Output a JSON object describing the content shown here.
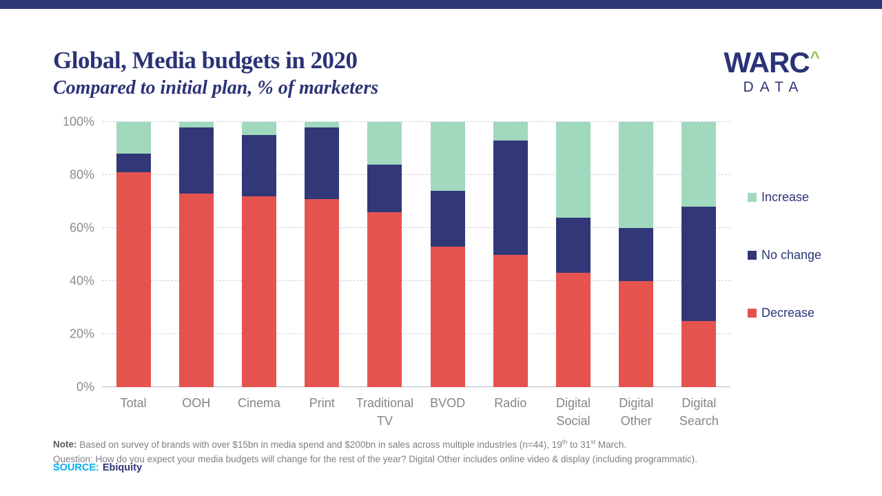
{
  "page": {
    "top_bar_color": "#2F3676",
    "background": "#FFFFFF"
  },
  "header": {
    "title": "Global, Media budgets in 2020",
    "subtitle": "Compared to initial plan, % of marketers",
    "logo": {
      "brand": "WARC",
      "caret": "^",
      "sub": "DATA",
      "brand_color": "#2B3377",
      "caret_color": "#8CC63F"
    }
  },
  "chart_data": {
    "type": "bar",
    "stacked": true,
    "unit": "% of marketers",
    "categories": [
      "Total",
      "OOH",
      "Cinema",
      "Print",
      "Traditional\nTV",
      "BVOD",
      "Radio",
      "Digital\nSocial",
      "Digital\nOther",
      "Digital\nSearch"
    ],
    "series": [
      {
        "name": "Decrease",
        "color": "#E5534F",
        "values": [
          81,
          73,
          72,
          71,
          66,
          53,
          50,
          43,
          40,
          25
        ]
      },
      {
        "name": "No change",
        "color": "#323778",
        "values": [
          7,
          25,
          23,
          27,
          18,
          21,
          43,
          21,
          20,
          43
        ]
      },
      {
        "name": "Increase",
        "color": "#A0D9BE",
        "values": [
          12,
          2,
          5,
          2,
          16,
          26,
          7,
          36,
          40,
          32
        ]
      }
    ],
    "title": "Global, Media budgets in 2020",
    "subtitle": "Compared to initial plan, % of marketers",
    "xlabel": "",
    "ylabel": "",
    "ylim": [
      0,
      100
    ],
    "y_ticks": [
      "0%",
      "20%",
      "40%",
      "60%",
      "80%",
      "100%"
    ],
    "grid": true,
    "legend_position": "right"
  },
  "legend": {
    "items": [
      {
        "label": "Increase",
        "color": "#A0D9BE"
      },
      {
        "label": "No change",
        "color": "#323778"
      },
      {
        "label": "Decrease",
        "color": "#E5534F"
      }
    ]
  },
  "footer": {
    "note_label": "Note:",
    "note_line1_segments": [
      {
        "text": " Based on survey of brands with over $15bn in media spend and $200bn in sales across multiple industries (n=44), 19"
      },
      {
        "sup": "th"
      },
      {
        "text": " to 31"
      },
      {
        "sup": "st"
      },
      {
        "text": " March."
      }
    ],
    "note_line2": "Question: How do you expect your media budgets will change for the rest of the year? Digital Other includes online video & display (including programmatic).",
    "source_label": "SOURCE:",
    "source_value": "Ebiquity",
    "source_label_color": "#00AEEF"
  }
}
